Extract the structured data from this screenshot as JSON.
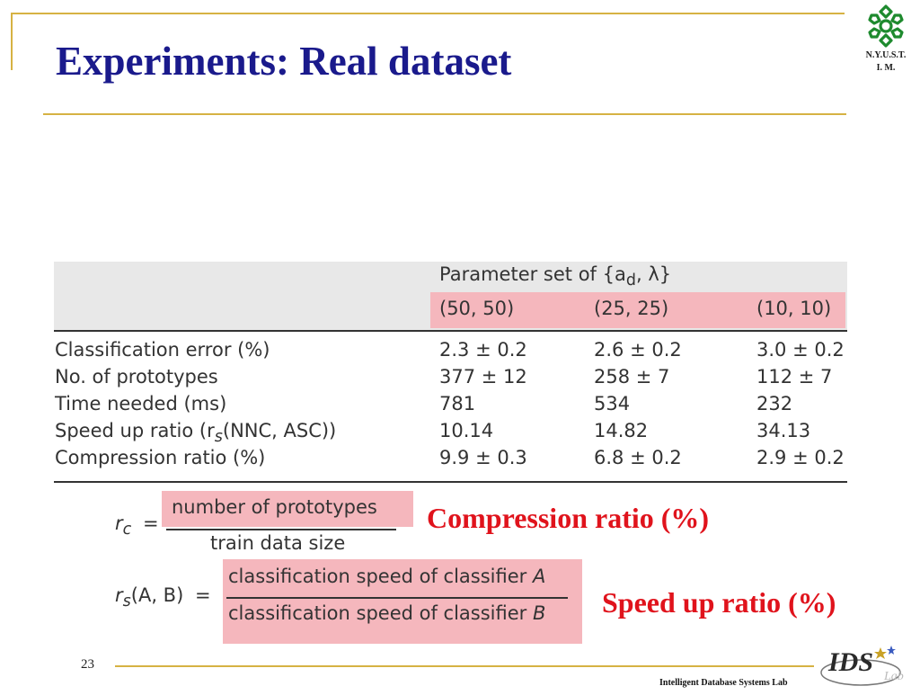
{
  "slide": {
    "title": "Experiments: Real dataset",
    "page_number": "23",
    "footer": "Intelligent Database Systems Lab"
  },
  "logo_top": {
    "icon": "green-snowflake-emblem",
    "line1": "N.Y.U.S.T.",
    "line2": "I. M.",
    "color": "#1e8a2e"
  },
  "logo_bottom": {
    "icon": "ids-lab-logo",
    "text": "IDS",
    "suffix": "Lab"
  },
  "table": {
    "param_header": "Parameter set of {a",
    "param_sub": "d",
    "param_tail": ", λ}",
    "columns": [
      "(50, 50)",
      "(25, 25)",
      "(10, 10)"
    ],
    "rows": [
      {
        "label": "Classification error (%)",
        "values": [
          "2.3 ± 0.2",
          "2.6 ± 0.2",
          "3.0 ± 0.2"
        ]
      },
      {
        "label": "No. of prototypes",
        "values": [
          "377 ± 12",
          "258 ± 7",
          "112 ± 7"
        ]
      },
      {
        "label": "Time needed (ms)",
        "values": [
          "781",
          "534",
          "232"
        ]
      },
      {
        "label_pre": "Speed up ratio (r",
        "label_sub": "s",
        "label_post": "(NNC, ASC))",
        "values": [
          "10.14",
          "14.82",
          "34.13"
        ]
      },
      {
        "label": "Compression ratio (%)",
        "values": [
          "9.9 ± 0.3",
          "6.8 ± 0.2",
          "2.9 ± 0.2"
        ]
      }
    ]
  },
  "formulas": {
    "rc": {
      "lhs": "r",
      "lhs_sub": "c",
      "eq": "=",
      "numerator": "number of prototypes",
      "denominator": "train data size",
      "caption": "Compression ratio (%)"
    },
    "rs": {
      "lhs": "r",
      "lhs_sub": "s",
      "lhs_args": "(A, B)",
      "eq": "=",
      "numerator": "classification speed of classifier",
      "numerator_var": "A",
      "denominator": "classification speed of classifier",
      "denominator_var": "B",
      "caption": "Speed up ratio (%)"
    }
  },
  "colors": {
    "title": "#1a1a8c",
    "gold": "#d6b243",
    "highlight": "#f5b7bd",
    "caption_red": "#e0131c"
  }
}
